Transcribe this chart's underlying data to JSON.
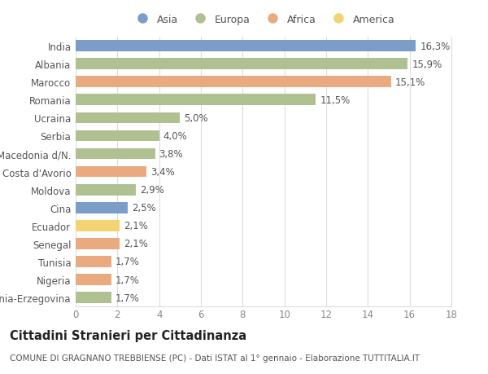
{
  "countries": [
    "India",
    "Albania",
    "Marocco",
    "Romania",
    "Ucraina",
    "Serbia",
    "Macedonia d/N.",
    "Costa d'Avorio",
    "Moldova",
    "Cina",
    "Ecuador",
    "Senegal",
    "Tunisia",
    "Nigeria",
    "Bosnia-Erzegovina"
  ],
  "values": [
    16.3,
    15.9,
    15.1,
    11.5,
    5.0,
    4.0,
    3.8,
    3.4,
    2.9,
    2.5,
    2.1,
    2.1,
    1.7,
    1.7,
    1.7
  ],
  "labels": [
    "16,3%",
    "15,9%",
    "15,1%",
    "11,5%",
    "5,0%",
    "4,0%",
    "3,8%",
    "3,4%",
    "2,9%",
    "2,5%",
    "2,1%",
    "2,1%",
    "1,7%",
    "1,7%",
    "1,7%"
  ],
  "continents": [
    "Asia",
    "Europa",
    "Africa",
    "Europa",
    "Europa",
    "Europa",
    "Europa",
    "Africa",
    "Europa",
    "Asia",
    "America",
    "Africa",
    "Africa",
    "Africa",
    "Europa"
  ],
  "colors": {
    "Asia": "#7b9dc7",
    "Europa": "#afc191",
    "Africa": "#e9aa80",
    "America": "#f2d472"
  },
  "legend_order": [
    "Asia",
    "Europa",
    "Africa",
    "America"
  ],
  "title": "Cittadini Stranieri per Cittadinanza",
  "subtitle": "COMUNE DI GRAGNANO TREBBIENSE (PC) - Dati ISTAT al 1° gennaio - Elaborazione TUTTITALIA.IT",
  "xlim": [
    0,
    18
  ],
  "xticks": [
    0,
    2,
    4,
    6,
    8,
    10,
    12,
    14,
    16,
    18
  ],
  "bg_color": "#ffffff",
  "grid_color": "#dddddd",
  "bar_height": 0.62,
  "label_fontsize": 8.5,
  "tick_fontsize": 8.5,
  "title_fontsize": 10.5,
  "subtitle_fontsize": 7.5
}
